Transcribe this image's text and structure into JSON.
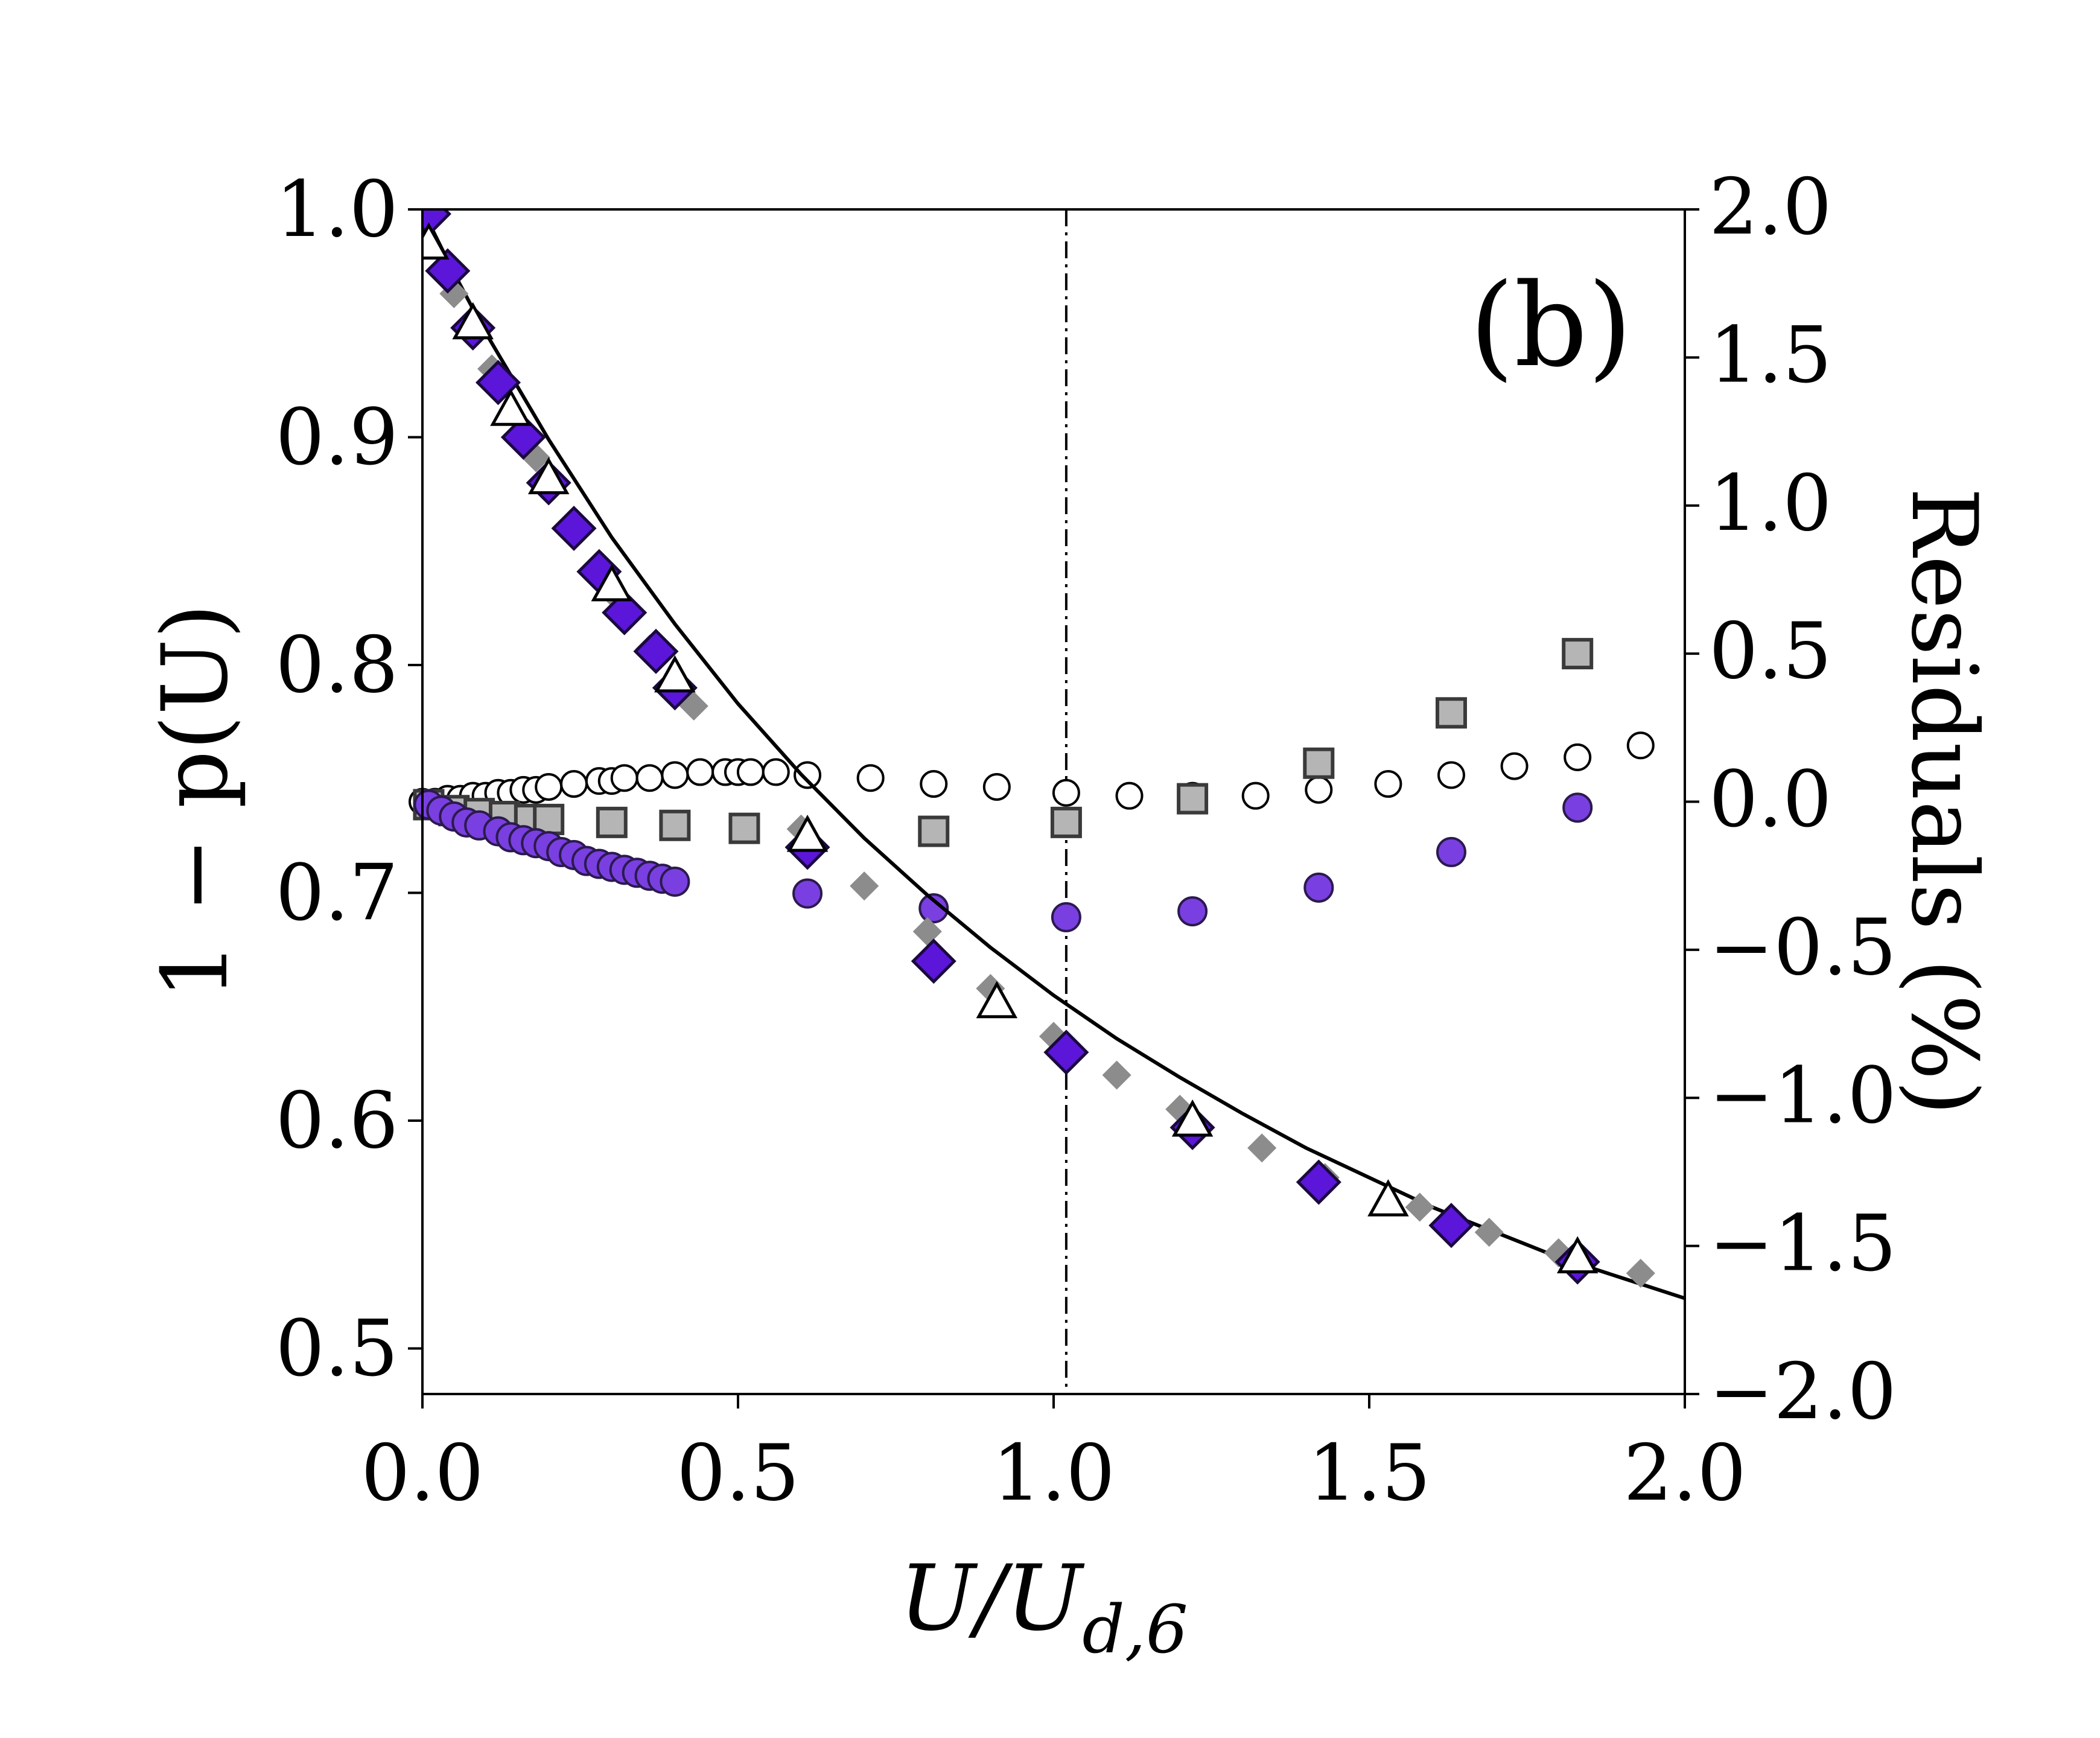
{
  "chart_data": {
    "type": "scatter",
    "panel_label": "(b)",
    "x_axis": {
      "label_main": "U/U",
      "label_sub": "d,6",
      "range": [
        0.0,
        2.0
      ],
      "ticks": [
        0.0,
        0.5,
        1.0,
        1.5,
        2.0
      ],
      "tick_labels": [
        "0.0",
        "0.5",
        "1.0",
        "1.5",
        "2.0"
      ]
    },
    "y_left": {
      "label": "1 − p(U)",
      "range": [
        0.48,
        1.0
      ],
      "ticks": [
        0.5,
        0.6,
        0.7,
        0.8,
        0.9,
        1.0
      ],
      "tick_labels": [
        "0.5",
        "0.6",
        "0.7",
        "0.8",
        "0.9",
        "1.0"
      ]
    },
    "y_right": {
      "label": "Residuals (%)",
      "range": [
        -2.0,
        2.0
      ],
      "ticks": [
        -2.0,
        -1.5,
        -1.0,
        -0.5,
        0.0,
        0.5,
        1.0,
        1.5,
        2.0
      ],
      "tick_labels": [
        "−2.0",
        "−1.5",
        "−1.0",
        "−0.5",
        "0.0",
        "0.5",
        "1.0",
        "1.5",
        "2.0"
      ]
    },
    "vline_x": 1.02,
    "fit_curve": {
      "name": "fit",
      "x": [
        0.0,
        0.05,
        0.1,
        0.2,
        0.3,
        0.4,
        0.5,
        0.6,
        0.7,
        0.8,
        0.9,
        1.0,
        1.1,
        1.2,
        1.3,
        1.4,
        1.5,
        1.6,
        1.7,
        1.8,
        1.9,
        2.0
      ],
      "y": [
        1.0,
        0.972,
        0.946,
        0.899,
        0.856,
        0.818,
        0.783,
        0.752,
        0.724,
        0.699,
        0.676,
        0.655,
        0.636,
        0.619,
        0.603,
        0.588,
        0.575,
        0.562,
        0.551,
        0.54,
        0.531,
        0.522
      ]
    },
    "series": [
      {
        "name": "gray-dashed-reference",
        "axis": "left",
        "x": [
          0.05,
          0.11,
          0.18,
          0.24,
          0.3,
          0.36,
          0.43,
          0.6,
          0.7,
          0.8,
          0.9,
          1.0,
          1.1,
          1.2,
          1.33,
          1.43,
          1.58,
          1.69,
          1.8,
          1.93
        ],
        "y": [
          0.963,
          0.93,
          0.891,
          0.859,
          0.832,
          0.807,
          0.782,
          0.728,
          0.703,
          0.683,
          0.658,
          0.637,
          0.62,
          0.605,
          0.588,
          0.575,
          0.562,
          0.551,
          0.542,
          0.533
        ]
      },
      {
        "name": "diamonds",
        "axis": "left",
        "x": [
          0.01,
          0.04,
          0.08,
          0.12,
          0.16,
          0.2,
          0.24,
          0.28,
          0.32,
          0.37,
          0.4,
          0.61,
          0.81,
          1.02,
          1.22,
          1.42,
          1.63,
          1.83
        ],
        "y": [
          0.998,
          0.973,
          0.948,
          0.924,
          0.9,
          0.88,
          0.86,
          0.841,
          0.823,
          0.806,
          0.79,
          0.72,
          0.67,
          0.63,
          0.597,
          0.573,
          0.554,
          0.538
        ]
      },
      {
        "name": "triangles",
        "axis": "left",
        "x": [
          0.01,
          0.08,
          0.14,
          0.2,
          0.3,
          0.4,
          0.61,
          0.91,
          1.22,
          1.53,
          1.83
        ],
        "y": [
          0.985,
          0.95,
          0.912,
          0.882,
          0.835,
          0.795,
          0.725,
          0.652,
          0.6,
          0.565,
          0.54
        ]
      },
      {
        "name": "open-circle-residuals",
        "axis": "right",
        "x": [
          0.0,
          0.02,
          0.04,
          0.06,
          0.08,
          0.1,
          0.12,
          0.14,
          0.16,
          0.18,
          0.2,
          0.24,
          0.28,
          0.3,
          0.32,
          0.36,
          0.4,
          0.44,
          0.48,
          0.5,
          0.52,
          0.56,
          0.61,
          0.71,
          0.81,
          0.91,
          1.02,
          1.12,
          1.22,
          1.32,
          1.42,
          1.53,
          1.63,
          1.73,
          1.83,
          1.93
        ],
        "y": [
          0.0,
          0.0,
          0.01,
          0.01,
          0.02,
          0.02,
          0.03,
          0.03,
          0.04,
          0.04,
          0.05,
          0.06,
          0.07,
          0.07,
          0.08,
          0.08,
          0.09,
          0.1,
          0.1,
          0.1,
          0.1,
          0.1,
          0.09,
          0.08,
          0.06,
          0.05,
          0.03,
          0.02,
          0.02,
          0.02,
          0.04,
          0.06,
          0.09,
          0.12,
          0.15,
          0.19
        ]
      },
      {
        "name": "gray-square-residuals",
        "axis": "right",
        "x": [
          0.01,
          0.05,
          0.09,
          0.13,
          0.17,
          0.2,
          0.3,
          0.4,
          0.51,
          0.81,
          1.02,
          1.22,
          1.42,
          1.63,
          1.83
        ],
        "y": [
          -0.01,
          -0.03,
          -0.04,
          -0.05,
          -0.06,
          -0.06,
          -0.07,
          -0.08,
          -0.09,
          -0.1,
          -0.07,
          0.01,
          0.13,
          0.3,
          0.5
        ]
      },
      {
        "name": "purple-circle-residuals",
        "axis": "right",
        "x": [
          0.01,
          0.03,
          0.05,
          0.07,
          0.09,
          0.12,
          0.14,
          0.16,
          0.18,
          0.2,
          0.22,
          0.24,
          0.26,
          0.28,
          0.3,
          0.32,
          0.34,
          0.36,
          0.38,
          0.4,
          0.61,
          0.81,
          1.02,
          1.22,
          1.42,
          1.63,
          1.83
        ],
        "y": [
          -0.01,
          -0.03,
          -0.05,
          -0.07,
          -0.08,
          -0.1,
          -0.12,
          -0.13,
          -0.14,
          -0.15,
          -0.17,
          -0.18,
          -0.2,
          -0.21,
          -0.22,
          -0.23,
          -0.24,
          -0.25,
          -0.26,
          -0.27,
          -0.31,
          -0.36,
          -0.39,
          -0.37,
          -0.29,
          -0.17,
          -0.02
        ]
      }
    ]
  }
}
